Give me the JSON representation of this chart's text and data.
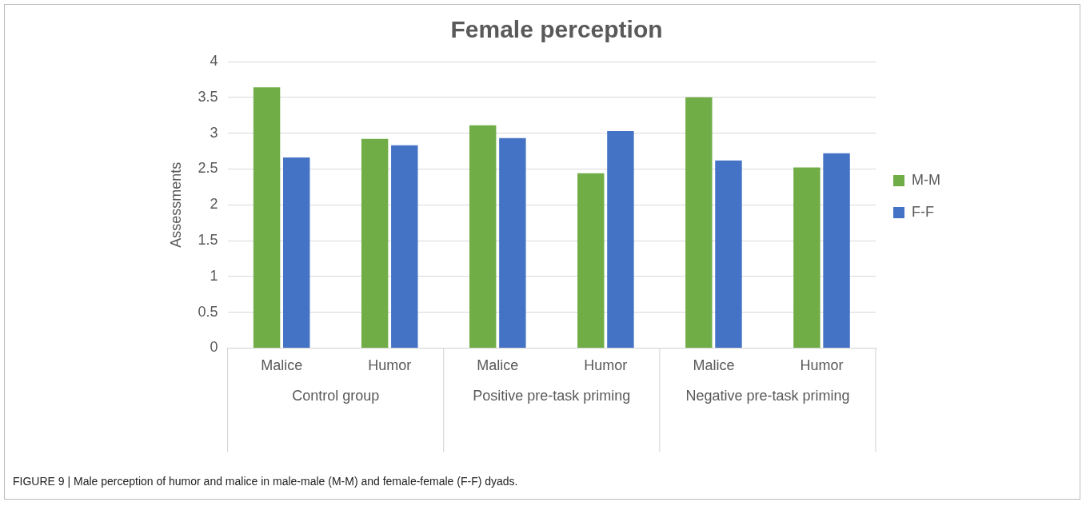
{
  "chart_data": {
    "type": "bar",
    "title": "Female perception",
    "ylabel": "Assessments",
    "categories": [
      "Malice",
      "Humor",
      "Malice",
      "Humor",
      "Malice",
      "Humor"
    ],
    "series": [
      {
        "name": "M-M",
        "color": "#70ad47",
        "values": [
          3.64,
          2.92,
          3.11,
          2.44,
          3.5,
          2.52
        ]
      },
      {
        "name": "F-F",
        "color": "#4472c4",
        "values": [
          2.66,
          2.83,
          2.93,
          3.03,
          2.62,
          2.72
        ]
      }
    ],
    "ylim": [
      0,
      4
    ],
    "yticks": [
      0,
      0.5,
      1,
      1.5,
      2,
      2.5,
      3,
      3.5,
      4
    ],
    "grid": "y",
    "legend": "right",
    "annotations": [
      "Control group",
      "Positive pre-task priming",
      "Negative pre-task priming",
      "FIGURE 9 | Male perception of humor and malice in male-male (M-M) and female-female (F-F) dyads."
    ]
  }
}
